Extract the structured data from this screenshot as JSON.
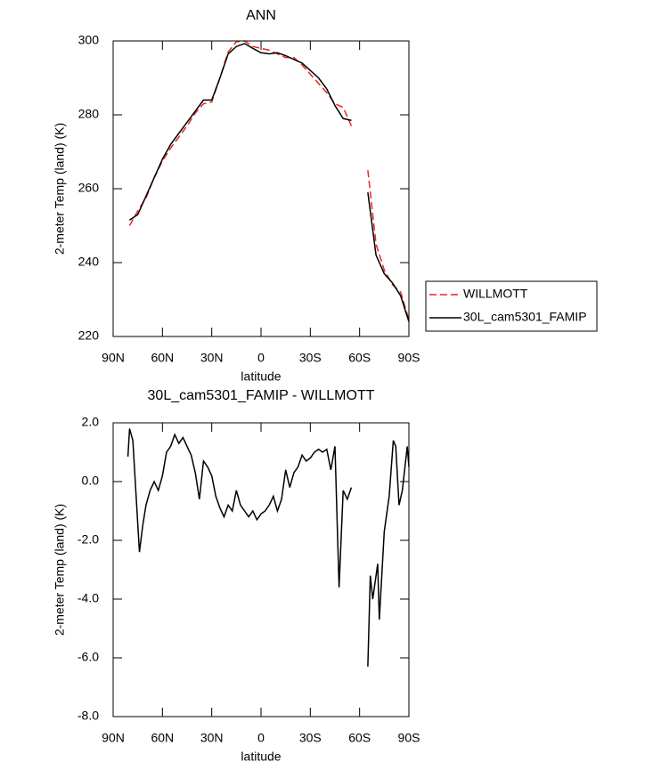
{
  "chart_data": [
    {
      "type": "line",
      "title": "ANN",
      "x_label": "latitude",
      "y_label": "2-meter Temp (land) (K)",
      "xlim": [
        90,
        -90
      ],
      "xticks": [
        {
          "value": 90,
          "label": "90N"
        },
        {
          "value": 60,
          "label": "60N"
        },
        {
          "value": 30,
          "label": "30N"
        },
        0,
        {
          "value": -30,
          "label": "30S"
        },
        {
          "value": -60,
          "label": "60S"
        },
        {
          "value": -90,
          "label": "90S"
        }
      ],
      "ylim": [
        220,
        300
      ],
      "yticks": [
        220,
        240,
        260,
        280,
        300
      ],
      "legend": "right",
      "x": [
        80,
        75,
        70,
        65,
        60,
        55,
        50,
        45,
        40,
        35,
        30,
        25,
        20,
        15,
        10,
        5,
        0,
        -5,
        -10,
        -15,
        -20,
        -25,
        -30,
        -35,
        -40,
        -45,
        -50,
        -55,
        -60,
        -65,
        -70,
        -75,
        -80,
        -85,
        -90
      ],
      "series": [
        {
          "name": "WILLMOTT",
          "color": "#e8261e",
          "style": "dashed",
          "values": [
            250,
            254,
            257.5,
            263,
            267.5,
            271,
            274,
            277,
            280.5,
            283,
            283.5,
            290,
            297,
            299.8,
            300,
            298.5,
            298,
            297.5,
            296.5,
            295.5,
            295.5,
            293.5,
            291,
            288.5,
            286,
            283,
            282,
            277,
            null,
            265,
            245,
            238,
            234,
            232,
            224.5
          ]
        },
        {
          "name": "30L_cam5301_FAMIP",
          "color": "#000000",
          "style": "solid",
          "values": [
            251.5,
            253,
            258,
            263,
            268,
            272,
            275,
            278,
            281,
            284,
            284,
            290,
            296.5,
            298.5,
            299.3,
            298,
            296.8,
            296.5,
            296.8,
            296,
            295,
            294,
            292,
            290,
            287,
            282.5,
            279,
            278.5,
            null,
            259,
            242,
            237,
            234.5,
            231,
            224
          ]
        }
      ]
    },
    {
      "type": "line",
      "title": "30L_cam5301_FAMIP - WILLMOTT",
      "x_label": "latitude",
      "y_label": "2-meter Temp (land) (K)",
      "xlim": [
        90,
        -90
      ],
      "xticks": [
        {
          "value": 90,
          "label": "90N"
        },
        {
          "value": 60,
          "label": "60N"
        },
        {
          "value": 30,
          "label": "30N"
        },
        0,
        {
          "value": -30,
          "label": "30S"
        },
        {
          "value": -60,
          "label": "60S"
        },
        {
          "value": -90,
          "label": "90S"
        }
      ],
      "ylim": [
        -8,
        2
      ],
      "yticks": [
        {
          "value": -8,
          "label": "-8.0"
        },
        {
          "value": -6,
          "label": "-6.0"
        },
        {
          "value": -4,
          "label": "-4.0"
        },
        {
          "value": -2,
          "label": "-2.0"
        },
        {
          "value": 0,
          "label": "0.0"
        },
        {
          "value": 2,
          "label": "2.0"
        }
      ],
      "color": "#000000",
      "x": [
        81,
        80,
        78,
        76,
        74,
        72,
        70,
        67.5,
        65,
        62.5,
        60,
        57.5,
        55,
        52.5,
        50,
        47.5,
        45,
        42.5,
        40,
        37.5,
        35,
        32.5,
        30,
        27.5,
        25,
        22.5,
        20,
        17.5,
        15,
        12.5,
        10,
        7.5,
        5,
        2.5,
        0,
        -2.5,
        -5,
        -7.5,
        -10,
        -12.5,
        -15,
        -17.5,
        -20,
        -22.5,
        -25,
        -27.5,
        -30,
        -32.5,
        -35,
        -37.5,
        -40,
        -42.5,
        -45,
        -47.5,
        -50,
        -52.5,
        -55,
        -60,
        -65,
        -66.5,
        -68,
        -71,
        -72,
        -75,
        -78,
        -80.5,
        -82,
        -84,
        -86,
        -89,
        -90
      ],
      "values": [
        0.85,
        1.8,
        1.4,
        -0.5,
        -2.4,
        -1.5,
        -0.8,
        -0.3,
        0.0,
        -0.3,
        0.2,
        1.0,
        1.2,
        1.6,
        1.3,
        1.5,
        1.2,
        0.9,
        0.3,
        -0.6,
        0.7,
        0.5,
        0.2,
        -0.5,
        -0.9,
        -1.2,
        -0.8,
        -1.0,
        -0.3,
        -0.8,
        -1.0,
        -1.2,
        -1.0,
        -1.3,
        -1.1,
        -1.0,
        -0.8,
        -0.5,
        -1.0,
        -0.6,
        0.4,
        -0.2,
        0.3,
        0.5,
        0.9,
        0.7,
        0.8,
        1.0,
        1.1,
        1.0,
        1.1,
        0.4,
        1.2,
        -3.6,
        -0.3,
        -0.6,
        -0.2,
        null,
        -6.3,
        -3.2,
        -4.0,
        -2.8,
        -4.7,
        -1.7,
        -0.5,
        1.4,
        1.2,
        -0.8,
        -0.3,
        1.2,
        0.5
      ]
    }
  ]
}
